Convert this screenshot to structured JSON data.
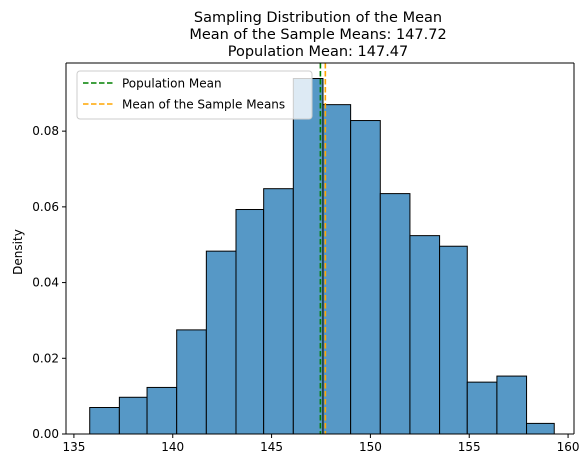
{
  "chart_data": {
    "type": "bar",
    "title_lines": [
      "Sampling Distribution of the Mean",
      "Mean of the Sample Means: 147.72",
      "Population Mean: 147.47"
    ],
    "xlabel": "",
    "ylabel": "Density",
    "xlim": [
      134.6,
      160.3
    ],
    "ylim": [
      0,
      0.098
    ],
    "xticks": [
      135,
      140,
      145,
      150,
      155,
      160
    ],
    "yticks": [
      0.0,
      0.02,
      0.04,
      0.06,
      0.08
    ],
    "ytick_labels": [
      "0.00",
      "0.02",
      "0.04",
      "0.06",
      "0.08"
    ],
    "bar_color": "#5698c6",
    "bar_edge_color": "#000000",
    "bins": [
      {
        "x0": 135.8,
        "x1": 137.3,
        "density": 0.007
      },
      {
        "x0": 137.3,
        "x1": 138.7,
        "density": 0.0097
      },
      {
        "x0": 138.7,
        "x1": 140.2,
        "density": 0.0123
      },
      {
        "x0": 140.2,
        "x1": 141.7,
        "density": 0.0275
      },
      {
        "x0": 141.7,
        "x1": 143.2,
        "density": 0.0483
      },
      {
        "x0": 143.2,
        "x1": 144.6,
        "density": 0.0593
      },
      {
        "x0": 144.6,
        "x1": 146.1,
        "density": 0.0648
      },
      {
        "x0": 146.1,
        "x1": 147.6,
        "density": 0.0939
      },
      {
        "x0": 147.6,
        "x1": 149.0,
        "density": 0.087
      },
      {
        "x0": 149.0,
        "x1": 150.5,
        "density": 0.0828
      },
      {
        "x0": 150.5,
        "x1": 152.0,
        "density": 0.0635
      },
      {
        "x0": 152.0,
        "x1": 153.5,
        "density": 0.0524
      },
      {
        "x0": 153.5,
        "x1": 154.9,
        "density": 0.0496
      },
      {
        "x0": 154.9,
        "x1": 156.4,
        "density": 0.0137
      },
      {
        "x0": 156.4,
        "x1": 157.9,
        "density": 0.0153
      },
      {
        "x0": 157.9,
        "x1": 159.3,
        "density": 0.0028
      }
    ],
    "vlines": [
      {
        "name": "Population Mean",
        "x": 147.47,
        "color": "#008000",
        "style": "dashed"
      },
      {
        "name": "Mean of the Sample Means",
        "x": 147.72,
        "color": "#ffa500",
        "style": "dashed"
      }
    ],
    "legend": {
      "placement": "top-left",
      "entries": [
        "Population Mean",
        "Mean of the Sample Means"
      ]
    },
    "grid": false
  }
}
